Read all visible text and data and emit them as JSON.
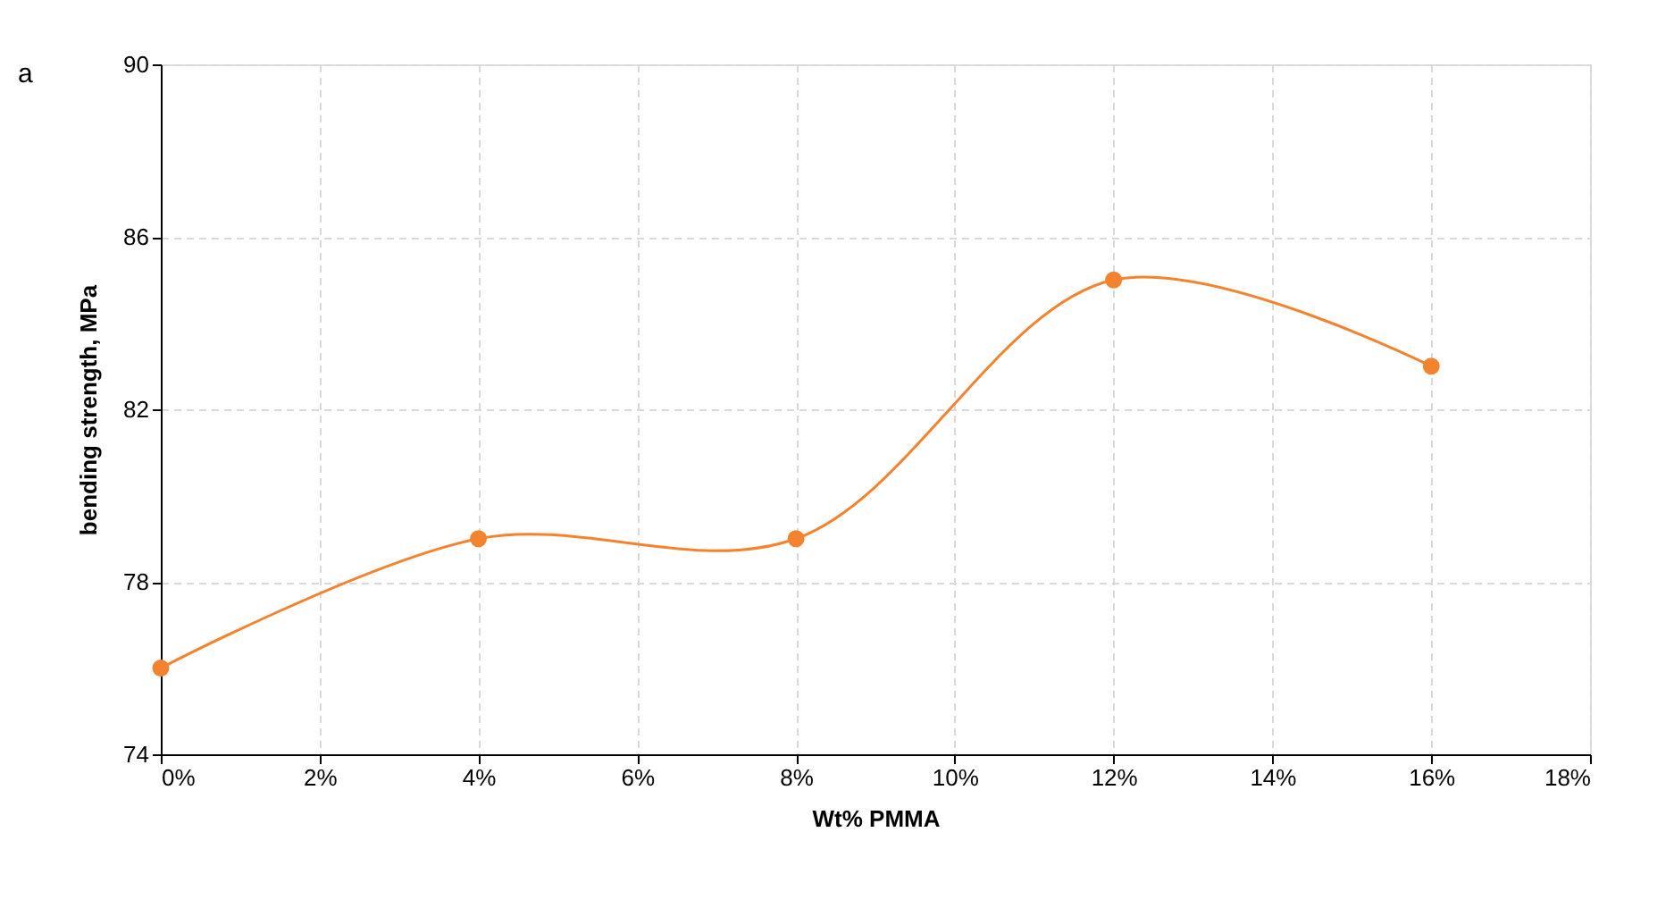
{
  "chart_data": {
    "type": "line",
    "xlabel": "Wt% PMMA",
    "ylabel": "bending strength, MPa",
    "annotations": [
      "a"
    ],
    "x": [
      0,
      4,
      8,
      12,
      16
    ],
    "series": [
      {
        "color": "#f4832f",
        "values": [
          76,
          79,
          79,
          85,
          83
        ]
      }
    ],
    "xlim": [
      0,
      18
    ],
    "xticks": [
      {
        "value": 0,
        "label": "0%"
      },
      {
        "value": 2,
        "label": "2%"
      },
      {
        "value": 4,
        "label": "4%"
      },
      {
        "value": 6,
        "label": "6%"
      },
      {
        "value": 8,
        "label": "8%"
      },
      {
        "value": 10,
        "label": "10%"
      },
      {
        "value": 12,
        "label": "12%"
      },
      {
        "value": 14,
        "label": "14%"
      },
      {
        "value": 16,
        "label": "16%"
      },
      {
        "value": 18,
        "label": "18%"
      }
    ],
    "ylim": [
      74,
      90
    ],
    "yticks": [
      74,
      78,
      82,
      86,
      90
    ],
    "grid": true,
    "marker": "circle"
  }
}
